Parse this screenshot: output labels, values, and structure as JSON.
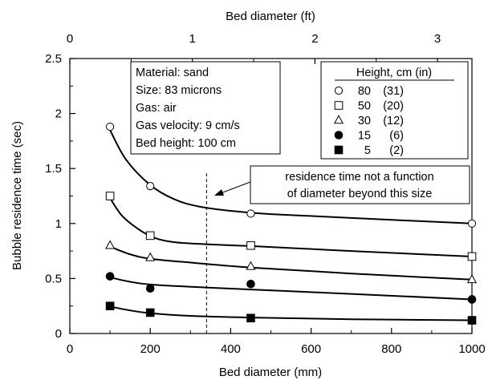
{
  "chart_data": {
    "type": "scatter",
    "xlabel": "Bed diameter (mm)",
    "ylabel": "Bubble residence time (sec)",
    "x2label": "Bed diameter (ft)",
    "xlim": [
      0,
      1000
    ],
    "ylim": [
      0,
      2.5
    ],
    "x2lim_ft": [
      0,
      3.281
    ],
    "xticks": [
      0,
      200,
      400,
      600,
      800,
      1000
    ],
    "yticks": [
      0,
      0.5,
      1,
      1.5,
      2,
      2.5
    ],
    "x2ticks": [
      0,
      1,
      2,
      3
    ],
    "grid": false,
    "info_box": [
      "Material: sand",
      "Size: 83 microns",
      "Gas: air",
      "Gas velocity: 9 cm/s",
      "Bed height: 100 cm"
    ],
    "legend": {
      "title": "Height, cm (in)",
      "position": "top-right"
    },
    "annotation": {
      "lines": [
        "residence time not a function",
        "of diameter beyond this size"
      ],
      "x": 340
    },
    "series": [
      {
        "name": "80",
        "name_in": "(31)",
        "marker": "open-circle",
        "points": [
          [
            100,
            1.88
          ],
          [
            200,
            1.34
          ],
          [
            450,
            1.09
          ],
          [
            1000,
            1.0
          ]
        ],
        "fit": [
          [
            100,
            1.85
          ],
          [
            140,
            1.58
          ],
          [
            200,
            1.35
          ],
          [
            260,
            1.22
          ],
          [
            320,
            1.155
          ],
          [
            400,
            1.115
          ],
          [
            500,
            1.085
          ],
          [
            700,
            1.05
          ],
          [
            1000,
            1.0
          ]
        ]
      },
      {
        "name": "50",
        "name_in": "(20)",
        "marker": "open-square",
        "points": [
          [
            100,
            1.25
          ],
          [
            200,
            0.89
          ],
          [
            450,
            0.8
          ],
          [
            1000,
            0.7
          ]
        ],
        "fit": [
          [
            100,
            1.23
          ],
          [
            130,
            1.07
          ],
          [
            170,
            0.95
          ],
          [
            210,
            0.87
          ],
          [
            260,
            0.83
          ],
          [
            350,
            0.81
          ],
          [
            450,
            0.795
          ],
          [
            700,
            0.75
          ],
          [
            1000,
            0.7
          ]
        ]
      },
      {
        "name": "30",
        "name_in": "(12)",
        "marker": "open-triangle",
        "points": [
          [
            100,
            0.8
          ],
          [
            200,
            0.69
          ],
          [
            450,
            0.61
          ],
          [
            1000,
            0.49
          ]
        ],
        "fit": [
          [
            100,
            0.79
          ],
          [
            150,
            0.72
          ],
          [
            200,
            0.68
          ],
          [
            300,
            0.645
          ],
          [
            450,
            0.6
          ],
          [
            700,
            0.545
          ],
          [
            1000,
            0.49
          ]
        ]
      },
      {
        "name": "15",
        "name_in": "(6)",
        "marker": "filled-circle",
        "points": [
          [
            100,
            0.52
          ],
          [
            200,
            0.41
          ],
          [
            450,
            0.45
          ],
          [
            1000,
            0.31
          ]
        ],
        "fit": [
          [
            100,
            0.51
          ],
          [
            150,
            0.47
          ],
          [
            200,
            0.445
          ],
          [
            300,
            0.425
          ],
          [
            450,
            0.4
          ],
          [
            700,
            0.36
          ],
          [
            1000,
            0.31
          ]
        ]
      },
      {
        "name": "5",
        "name_in": "(2)",
        "marker": "filled-square",
        "points": [
          [
            100,
            0.25
          ],
          [
            200,
            0.19
          ],
          [
            450,
            0.14
          ],
          [
            1000,
            0.12
          ]
        ],
        "fit": [
          [
            100,
            0.245
          ],
          [
            150,
            0.21
          ],
          [
            200,
            0.185
          ],
          [
            300,
            0.16
          ],
          [
            450,
            0.145
          ],
          [
            700,
            0.13
          ],
          [
            1000,
            0.12
          ]
        ]
      }
    ]
  }
}
